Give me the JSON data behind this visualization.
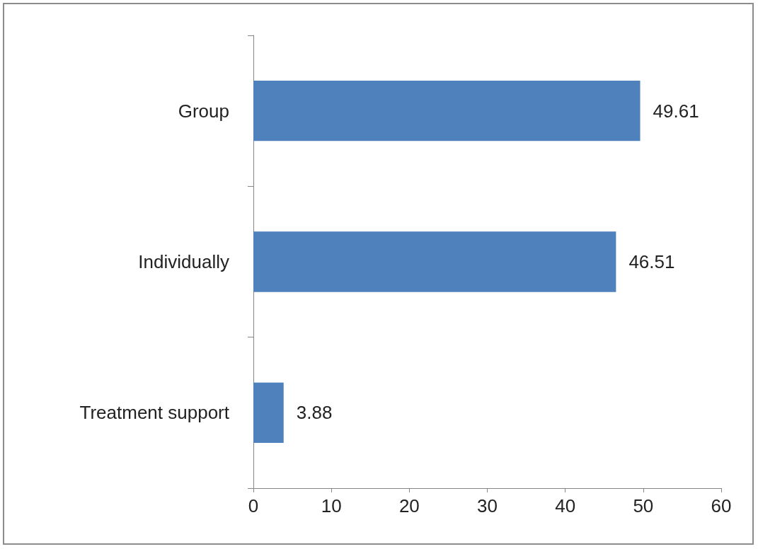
{
  "chart_data": {
    "type": "bar",
    "orientation": "horizontal",
    "categories": [
      "Group",
      "Individually",
      "Treatment support"
    ],
    "values": [
      49.61,
      46.51,
      3.88
    ],
    "color": "#4f81bd",
    "xlim": [
      0,
      60
    ],
    "xticks": [
      0,
      10,
      20,
      30,
      40,
      50,
      60
    ],
    "grid": false,
    "data_labels": true
  }
}
